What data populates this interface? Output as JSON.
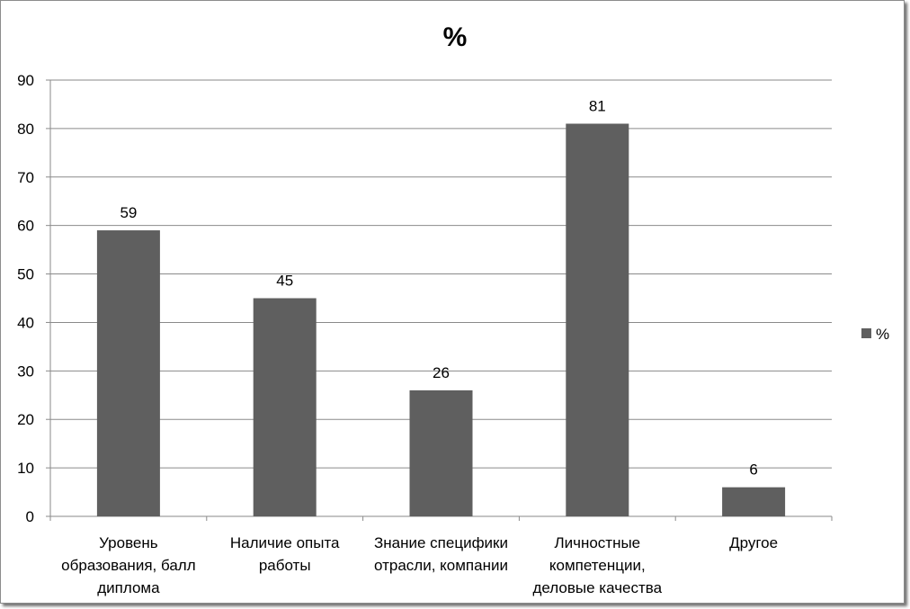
{
  "chart_data": {
    "type": "bar",
    "title": "%",
    "categories": [
      [
        "Уровень",
        "образования, балл",
        "диплома"
      ],
      [
        "Наличие опыта",
        "работы"
      ],
      [
        "Знание специфики",
        "отрасли, компании"
      ],
      [
        "Личностные",
        "компетенции,",
        "деловые качества"
      ],
      [
        "Другое"
      ]
    ],
    "series": [
      {
        "name": "%",
        "values": [
          59,
          45,
          26,
          81,
          6
        ]
      }
    ],
    "ylim": [
      0,
      90
    ],
    "yticks": [
      0,
      10,
      20,
      30,
      40,
      50,
      60,
      70,
      80,
      90
    ],
    "grid": true,
    "data_labels": true,
    "legend_position": "right",
    "bar_color": "#5f5f5f"
  }
}
